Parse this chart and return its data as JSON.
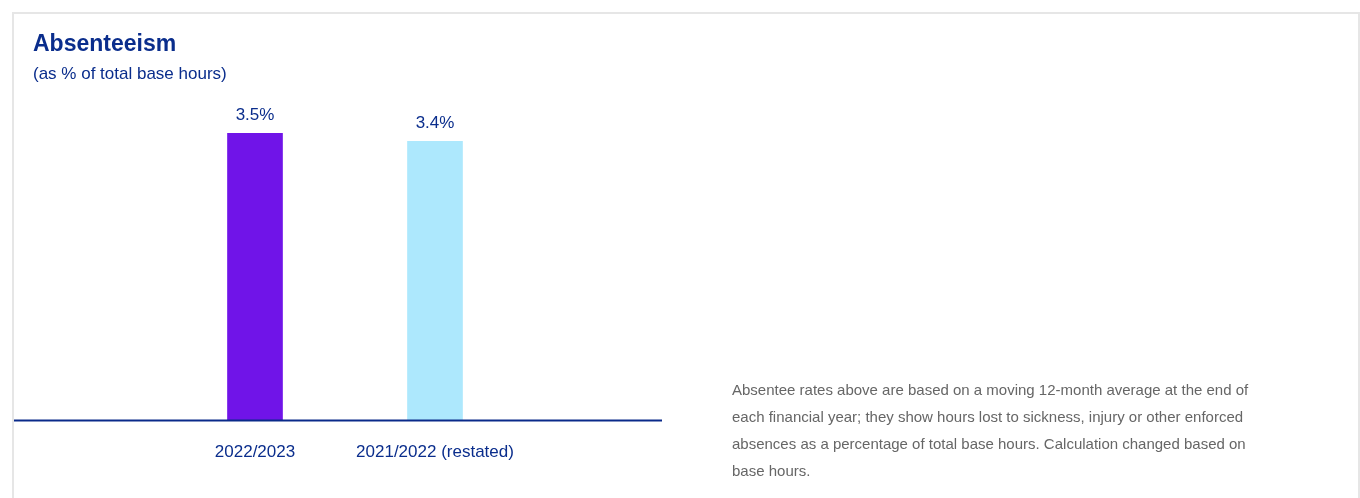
{
  "chart_data": {
    "type": "bar",
    "title": "Absenteeism",
    "subtitle": "(as % of total base hours)",
    "categories": [
      "2022/2023",
      "2021/2022 (restated)"
    ],
    "values": [
      3.5,
      3.4
    ],
    "colors": [
      "#7014e8",
      "#ade8fd"
    ],
    "value_labels": [
      "3.5%",
      "3.4%"
    ],
    "grid": false,
    "legend": false,
    "annotations": [
      "Absentee rates above are based on a moving 12-month average at the end of each financial year; they show hours lost to sickness, injury or other enforced absences as a percentage of total base hours. Calculation changed based on base hours."
    ]
  }
}
